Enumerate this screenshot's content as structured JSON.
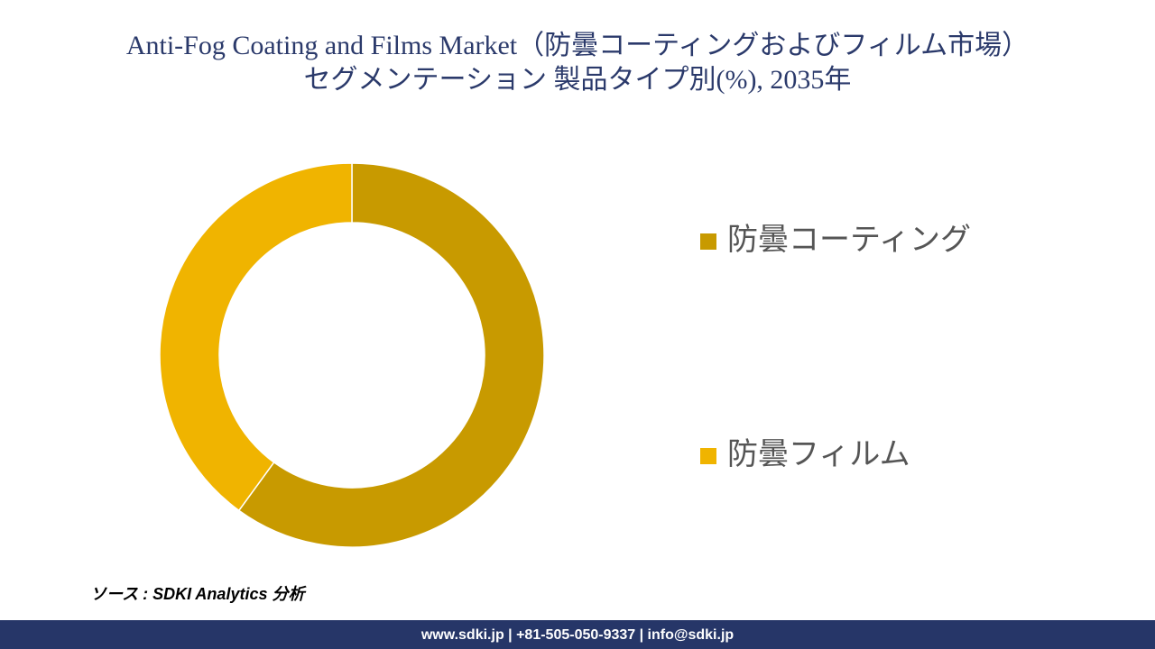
{
  "chart_data": {
    "type": "donut",
    "title": "Anti-Fog Coating and Films Market（防曇コーティングおよびフィルム市場）",
    "subtitle": "セグメンテーション 製品タイプ別(%), 2035年",
    "series": [
      {
        "name": "防曇コーティング",
        "color": "#c89a00",
        "values": [
          60
        ]
      },
      {
        "name": "防曇フィルム",
        "color": "#f0b400",
        "values": [
          40
        ]
      }
    ],
    "legend": "right"
  },
  "source": "ソース : SDKI Analytics 分析",
  "footer": "www.sdki.jp | +81-505-050-9337 | info@sdki.jp"
}
